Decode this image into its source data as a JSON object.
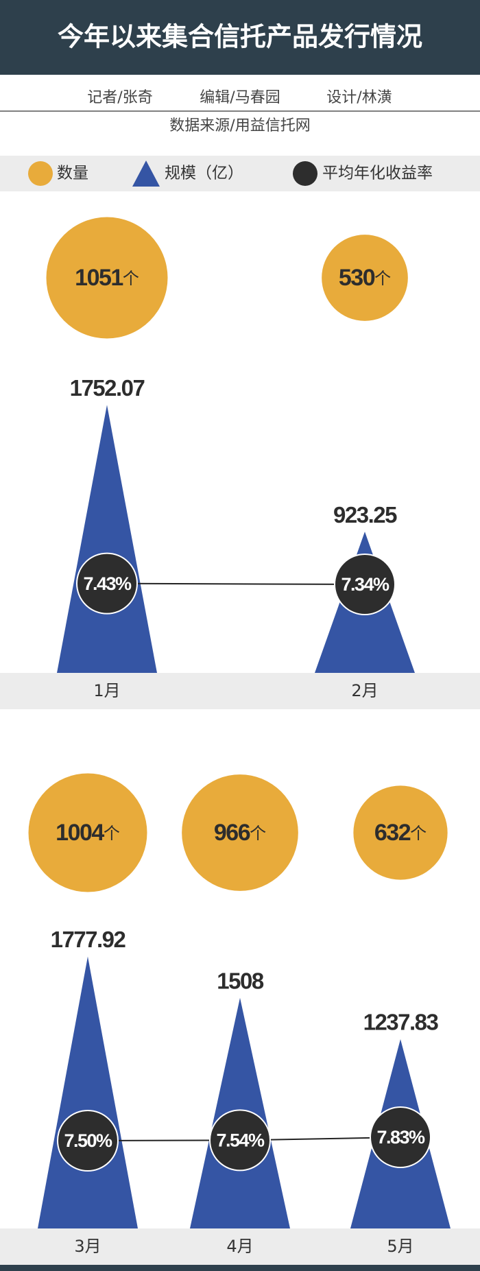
{
  "header": {
    "title": "今年以来集合信托产品发行情况",
    "credits": [
      "记者/张奇",
      "编辑/马春园",
      "设计/林潢"
    ],
    "source": "数据来源/用益信托网"
  },
  "chart_data": [
    {
      "type": "pictograph",
      "categories": [
        "1月",
        "2月"
      ],
      "series": [
        {
          "name": "数量",
          "color": "#e8ab3b",
          "unit": "个",
          "values": [
            1051,
            530
          ]
        },
        {
          "name": "规模（亿）",
          "color": "#3555a4",
          "values": [
            1752.07,
            923.25
          ]
        },
        {
          "name": "平均年化收益率",
          "color": "#2d2d2d",
          "values": [
            7.43,
            7.34
          ],
          "value_labels": [
            "7.43%",
            "7.34%"
          ]
        }
      ]
    },
    {
      "type": "pictograph",
      "categories": [
        "3月",
        "4月",
        "5月"
      ],
      "series": [
        {
          "color": "#e8ab3b",
          "unit": "个",
          "values": [
            1004,
            966,
            632
          ]
        },
        {
          "color": "#3555a4",
          "values": [
            1777.92,
            1508,
            1237.83
          ]
        },
        {
          "color": "#2d2d2d",
          "values": [
            7.5,
            7.54,
            7.83
          ],
          "value_labels": [
            "7.50%",
            "7.54%",
            "7.83%"
          ]
        }
      ]
    }
  ]
}
